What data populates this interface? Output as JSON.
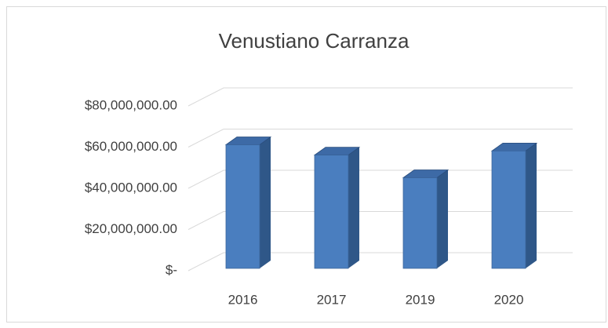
{
  "chart_data": {
    "type": "bar",
    "title": "Venustiano Carranza",
    "categories": [
      "2016",
      "2017",
      "2019",
      "2020"
    ],
    "values": [
      60000000,
      55000000,
      44000000,
      57000000
    ],
    "color": "#4a7ebf",
    "ylim": [
      0,
      80000000
    ],
    "yticks": [
      {
        "value": 0,
        "label": "$-"
      },
      {
        "value": 20000000,
        "label": "$20,000,000.00"
      },
      {
        "value": 40000000,
        "label": "$40,000,000.00"
      },
      {
        "value": 60000000,
        "label": "$60,000,000.00"
      },
      {
        "value": 80000000,
        "label": "$80,000,000.00"
      }
    ],
    "grid": true
  }
}
